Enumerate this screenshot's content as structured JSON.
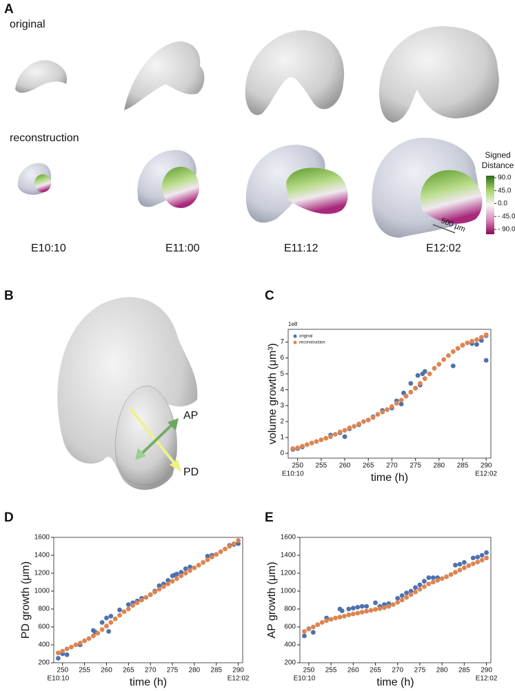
{
  "figure": {
    "panel_labels": [
      "A",
      "B",
      "C",
      "D",
      "E"
    ],
    "row_labels": [
      "original",
      "reconstruction"
    ],
    "stages": [
      "E10:10",
      "E11:00",
      "E11:12",
      "E12:02"
    ],
    "colorbar": {
      "title_lines": [
        "Signed",
        "Distance"
      ],
      "ticks": [
        {
          "value": 90,
          "label": "90.0"
        },
        {
          "value": 45,
          "label": "45.0"
        },
        {
          "value": 0,
          "label": "0.0"
        },
        {
          "value": -45,
          "label": "- 45.0"
        },
        {
          "value": -90,
          "label": "- 90.0"
        }
      ],
      "lim": [
        -90,
        90
      ]
    },
    "scale_bar": "500 μm",
    "axis_labels": [
      "AP",
      "PD"
    ]
  },
  "chart_data": [
    {
      "type": "scatter",
      "xlabel": "time (h)",
      "ylabel": "volume growth (μm³)",
      "offset_label": "1e8",
      "xlim": [
        248,
        291
      ],
      "ylim": [
        -0.3,
        7.8
      ],
      "xticks": [
        250,
        255,
        260,
        265,
        270,
        275,
        280,
        285,
        290
      ],
      "yticks": [
        0,
        1,
        2,
        3,
        4,
        5,
        6,
        7
      ],
      "legend": "upper left",
      "annotations": [
        {
          "text": "E10:10",
          "x": 249
        },
        {
          "text": "E12:02",
          "x": 290
        }
      ],
      "series": [
        {
          "name": "original",
          "color": "#4c72b0",
          "x": [
            249,
            250,
            251,
            257,
            259,
            260,
            261,
            263,
            265,
            266,
            268,
            270,
            271,
            272,
            272.5,
            273,
            274,
            275,
            275.5,
            276,
            276.5,
            277,
            283,
            285,
            287,
            288,
            289,
            290,
            290
          ],
          "values": [
            0.25,
            0.3,
            0.4,
            1.15,
            1.3,
            1.05,
            1.55,
            1.8,
            2.1,
            2.3,
            2.7,
            2.85,
            3.3,
            3.1,
            3.8,
            3.6,
            4.4,
            4.1,
            4.9,
            4.3,
            5.0,
            5.15,
            5.5,
            6.8,
            6.9,
            6.85,
            7.1,
            7.4,
            5.85
          ]
        },
        {
          "name": "reconstruction",
          "color": "#dd8452",
          "x": [
            249,
            250,
            251,
            252,
            253,
            254,
            255,
            256,
            257,
            258,
            259,
            260,
            261,
            262,
            263,
            264,
            265,
            266,
            267,
            268,
            269,
            270,
            271,
            272,
            273,
            274,
            275,
            276,
            277,
            278,
            279,
            280,
            281,
            282,
            283,
            284,
            285,
            286,
            287,
            288,
            289,
            290
          ],
          "values": [
            0.3,
            0.35,
            0.45,
            0.55,
            0.65,
            0.75,
            0.85,
            0.95,
            1.05,
            1.2,
            1.35,
            1.45,
            1.6,
            1.7,
            1.85,
            2.0,
            2.1,
            2.25,
            2.45,
            2.6,
            2.75,
            2.95,
            3.15,
            3.35,
            3.6,
            3.85,
            4.1,
            4.4,
            4.7,
            5.0,
            5.35,
            5.6,
            5.9,
            6.15,
            6.4,
            6.6,
            6.8,
            6.95,
            7.05,
            7.15,
            7.3,
            7.45
          ]
        }
      ]
    },
    {
      "type": "scatter",
      "xlabel": "time (h)",
      "ylabel": "PD growth (μm)",
      "xlim": [
        248,
        291
      ],
      "ylim": [
        200,
        1600
      ],
      "xticks": [
        250,
        255,
        260,
        265,
        270,
        275,
        280,
        285,
        290
      ],
      "yticks": [
        200,
        400,
        600,
        800,
        1000,
        1200,
        1400,
        1600
      ],
      "annotations": [
        {
          "text": "E10:10",
          "x": 249
        },
        {
          "text": "E12:02",
          "x": 290
        }
      ],
      "series": [
        {
          "color": "#4c72b0",
          "x": [
            249,
            250,
            251,
            254,
            257,
            257.5,
            259,
            260,
            260.5,
            261,
            263,
            265,
            266,
            267,
            268,
            270,
            271,
            272,
            273,
            274,
            275,
            275.5,
            276,
            277,
            278,
            279,
            283,
            284,
            288,
            289,
            290
          ],
          "values": [
            250,
            300,
            290,
            400,
            560,
            540,
            650,
            700,
            550,
            720,
            790,
            850,
            870,
            890,
            920,
            960,
            1000,
            1060,
            1080,
            1120,
            1170,
            1180,
            1190,
            1210,
            1250,
            1270,
            1390,
            1400,
            1510,
            1520,
            1530
          ]
        },
        {
          "color": "#dd8452",
          "x": [
            249,
            250,
            251,
            252,
            253,
            254,
            255,
            256,
            257,
            258,
            259,
            260,
            261,
            262,
            263,
            264,
            265,
            266,
            267,
            268,
            269,
            270,
            271,
            272,
            273,
            274,
            275,
            276,
            277,
            278,
            279,
            280,
            281,
            282,
            283,
            284,
            285,
            286,
            287,
            288,
            289,
            290
          ],
          "values": [
            310,
            330,
            355,
            375,
            400,
            420,
            445,
            470,
            500,
            530,
            570,
            610,
            650,
            690,
            730,
            770,
            800,
            840,
            870,
            900,
            930,
            960,
            990,
            1020,
            1050,
            1080,
            1110,
            1140,
            1170,
            1200,
            1230,
            1260,
            1290,
            1320,
            1350,
            1380,
            1410,
            1440,
            1470,
            1500,
            1530,
            1565
          ]
        }
      ]
    },
    {
      "type": "scatter",
      "xlabel": "time (h)",
      "ylabel": "AP growth (μm)",
      "xlim": [
        248,
        291
      ],
      "ylim": [
        200,
        1600
      ],
      "xticks": [
        250,
        255,
        260,
        265,
        270,
        275,
        280,
        285,
        290
      ],
      "yticks": [
        200,
        400,
        600,
        800,
        1000,
        1200,
        1400,
        1600
      ],
      "annotations": [
        {
          "text": "E10:10",
          "x": 249
        },
        {
          "text": "E12:02",
          "x": 290
        }
      ],
      "series": [
        {
          "color": "#4c72b0",
          "x": [
            249,
            250,
            251,
            254,
            257,
            257.5,
            259,
            260,
            261,
            262,
            263,
            265,
            266,
            267,
            268,
            270,
            271,
            272,
            273,
            274,
            275,
            276,
            277,
            278,
            279,
            283,
            284,
            285,
            287,
            288,
            289,
            290
          ],
          "values": [
            500,
            580,
            540,
            700,
            800,
            780,
            800,
            810,
            820,
            830,
            830,
            870,
            830,
            850,
            860,
            920,
            950,
            980,
            1000,
            1040,
            1070,
            1110,
            1150,
            1150,
            1150,
            1290,
            1300,
            1320,
            1370,
            1380,
            1400,
            1430
          ]
        },
        {
          "color": "#dd8452",
          "x": [
            249,
            250,
            251,
            252,
            253,
            254,
            255,
            256,
            257,
            258,
            259,
            260,
            261,
            262,
            263,
            264,
            265,
            266,
            267,
            268,
            269,
            270,
            271,
            272,
            273,
            274,
            275,
            276,
            277,
            278,
            279,
            280,
            281,
            282,
            283,
            284,
            285,
            286,
            287,
            288,
            289,
            290
          ],
          "values": [
            550,
            575,
            600,
            625,
            650,
            670,
            685,
            700,
            710,
            720,
            735,
            745,
            755,
            765,
            775,
            785,
            795,
            805,
            815,
            830,
            850,
            875,
            900,
            930,
            960,
            990,
            1020,
            1050,
            1080,
            1100,
            1120,
            1140,
            1160,
            1185,
            1210,
            1235,
            1260,
            1285,
            1305,
            1325,
            1345,
            1370
          ]
        }
      ]
    }
  ]
}
